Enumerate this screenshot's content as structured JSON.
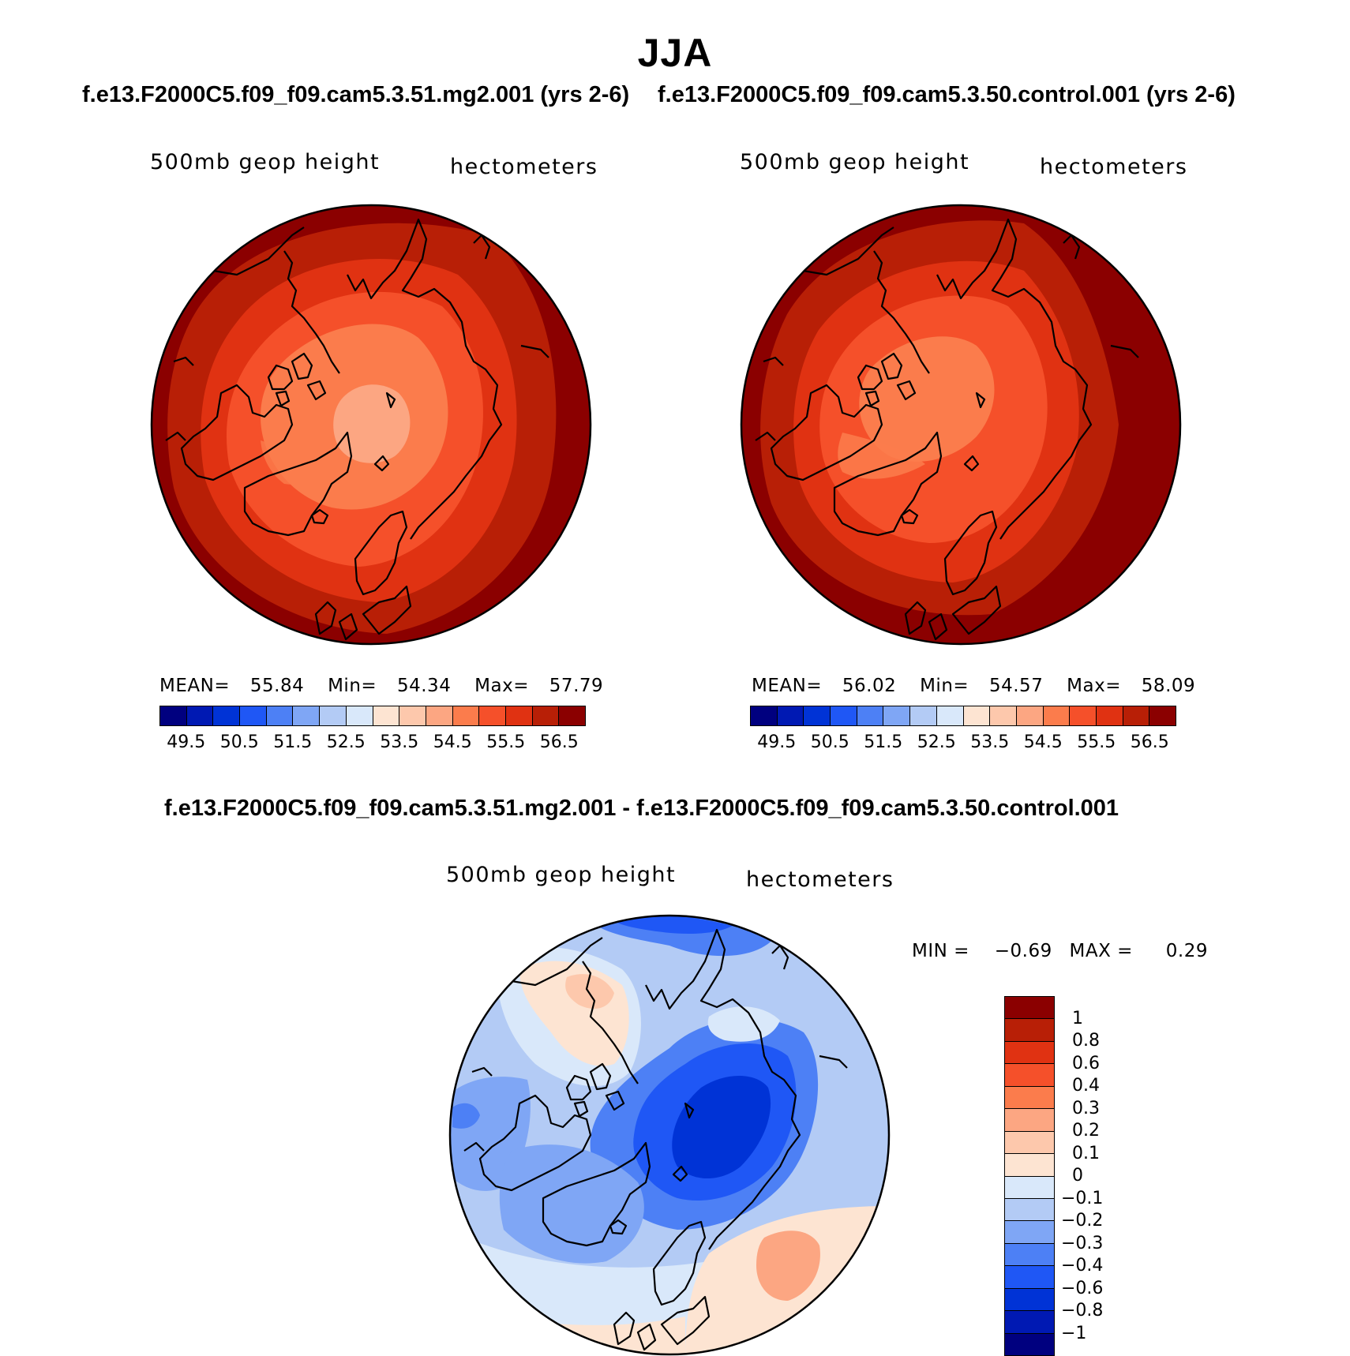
{
  "title": "JJA",
  "panels": {
    "left": {
      "case_title": "f.e13.F2000C5.f09_f09.cam5.3.51.mg2.001 (yrs 2-6)",
      "variable": "500mb geop height",
      "units": "hectometers",
      "stats": {
        "mean_label": "MEAN=",
        "mean": "55.84",
        "min_label": "Min=",
        "min": "54.34",
        "max_label": "Max=",
        "max": "57.79"
      }
    },
    "right": {
      "case_title": "f.e13.F2000C5.f09_f09.cam5.3.50.control.001 (yrs 2-6)",
      "variable": "500mb geop height",
      "units": "hectometers",
      "stats": {
        "mean_label": "MEAN=",
        "mean": "56.02",
        "min_label": "Min=",
        "min": "54.57",
        "max_label": "Max=",
        "max": "58.09"
      }
    },
    "diff": {
      "case_title": "f.e13.F2000C5.f09_f09.cam5.3.51.mg2.001 - f.e13.F2000C5.f09_f09.cam5.3.50.control.001",
      "variable": "500mb geop height",
      "units": "hectometers",
      "minmax": {
        "min_label": "MIN =",
        "min": "−0.69",
        "max_label": "MAX =",
        "max": "0.29"
      }
    }
  },
  "colorbar_abs": {
    "colors": [
      "#00007f",
      "#0019b3",
      "#0033d6",
      "#1f57f5",
      "#4d80f5",
      "#7fa6f5",
      "#b3cbf5",
      "#d9e8fa",
      "#fde4d2",
      "#fdc8ac",
      "#fca682",
      "#fb7c4c",
      "#f5502a",
      "#e03212",
      "#b81f06",
      "#8b0000"
    ],
    "ticks": [
      "49.5",
      "50.5",
      "51.5",
      "52.5",
      "53.5",
      "54.5",
      "55.5",
      "56.5"
    ]
  },
  "colorbar_diff": {
    "colors": [
      "#8b0000",
      "#b81f06",
      "#e03212",
      "#f5502a",
      "#fb7c4c",
      "#fca682",
      "#fdc8ac",
      "#fde4d2",
      "#d9e8fa",
      "#b3cbf5",
      "#7fa6f5",
      "#4d80f5",
      "#1f57f5",
      "#0033d6",
      "#0019b3",
      "#00007f"
    ],
    "ticks": [
      "1",
      "0.8",
      "0.6",
      "0.4",
      "0.3",
      "0.2",
      "0.1",
      "0",
      "−0.1",
      "−0.2",
      "−0.3",
      "−0.4",
      "−0.6",
      "−0.8",
      "−1"
    ]
  },
  "map": {
    "projection": "north-polar-stereographic",
    "field": "500mb geopotential height"
  }
}
